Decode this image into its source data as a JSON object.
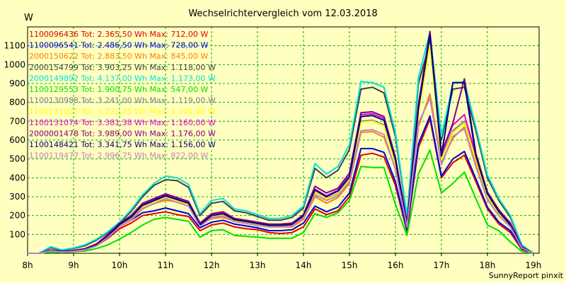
{
  "chart_data": {
    "type": "line",
    "title": "Wechselrichtervergleich vom 12.03.2018",
    "ylabel": "W",
    "xlabel": "",
    "credit": "SunnyReport pinxit",
    "ylim": [
      0,
      1200
    ],
    "yticks": [
      100,
      200,
      300,
      400,
      500,
      600,
      700,
      800,
      900,
      1000,
      1100
    ],
    "xlim": [
      8,
      19.125
    ],
    "xticks": [
      8,
      9,
      10,
      11,
      12,
      13,
      14,
      15,
      16,
      17,
      18,
      19
    ],
    "xtick_labels": [
      "8h",
      "9h",
      "10h",
      "11h",
      "12h",
      "13h",
      "14h",
      "15h",
      "16h",
      "17h",
      "18h",
      "19h"
    ],
    "grid": true,
    "legend_position": "top-left",
    "x": [
      8.0,
      8.25,
      8.5,
      8.75,
      9.0,
      9.25,
      9.5,
      9.75,
      10.0,
      10.25,
      10.5,
      10.75,
      11.0,
      11.25,
      11.5,
      11.75,
      12.0,
      12.25,
      12.5,
      12.75,
      13.0,
      13.25,
      13.5,
      13.75,
      14.0,
      14.25,
      14.5,
      14.75,
      15.0,
      15.25,
      15.5,
      15.75,
      16.0,
      16.25,
      16.5,
      16.75,
      17.0,
      17.25,
      17.5,
      17.75,
      18.0,
      18.25,
      18.5,
      18.75,
      19.0
    ],
    "series": [
      {
        "name": "1100096436 Tot: 2.365,50 Wh Max: 712,00 W",
        "color": "#e00000",
        "values": [
          0,
          0,
          12,
          5,
          10,
          18,
          40,
          80,
          130,
          160,
          200,
          210,
          220,
          205,
          195,
          120,
          150,
          160,
          140,
          130,
          125,
          110,
          105,
          110,
          140,
          235,
          205,
          225,
          300,
          520,
          530,
          510,
          360,
          115,
          560,
          712,
          400,
          480,
          520,
          380,
          235,
          155,
          110,
          20,
          0
        ]
      },
      {
        "name": "1100096541 Tot: 2.486,50 Wh Max: 728,00 W",
        "color": "#0000e0",
        "values": [
          0,
          0,
          15,
          8,
          12,
          20,
          45,
          90,
          145,
          175,
          215,
          225,
          240,
          225,
          210,
          135,
          165,
          175,
          155,
          145,
          135,
          120,
          120,
          125,
          160,
          250,
          220,
          245,
          320,
          555,
          555,
          535,
          380,
          125,
          580,
          728,
          410,
          500,
          540,
          395,
          245,
          165,
          120,
          25,
          0
        ]
      },
      {
        "name": "2000150622 Tot: 2.883,50 Wh Max: 845,00 W",
        "color": "#ff8000",
        "values": [
          0,
          0,
          12,
          6,
          10,
          18,
          40,
          85,
          140,
          175,
          235,
          265,
          280,
          275,
          255,
          150,
          185,
          190,
          170,
          160,
          150,
          140,
          140,
          140,
          180,
          300,
          265,
          295,
          370,
          640,
          645,
          615,
          450,
          140,
          670,
          845,
          480,
          610,
          670,
          470,
          290,
          200,
          140,
          30,
          0
        ]
      },
      {
        "name": "2000154799 Tot: 3.903,25 Wh Max: 1.118,00 W",
        "color": "#404040",
        "values": [
          0,
          0,
          30,
          15,
          25,
          40,
          70,
          110,
          160,
          220,
          300,
          360,
          390,
          385,
          350,
          200,
          265,
          275,
          225,
          215,
          195,
          175,
          175,
          190,
          240,
          450,
          400,
          440,
          550,
          870,
          880,
          850,
          620,
          190,
          900,
          1118,
          600,
          870,
          880,
          650,
          400,
          280,
          190,
          40,
          0
        ]
      },
      {
        "name": "2000149892 Tot: 4.137,00 Wh Max: 1.173,00 W",
        "color": "#00e0e0",
        "values": [
          0,
          0,
          35,
          18,
          28,
          45,
          75,
          115,
          165,
          230,
          310,
          370,
          410,
          400,
          365,
          210,
          280,
          290,
          235,
          225,
          205,
          185,
          185,
          200,
          250,
          475,
          420,
          460,
          575,
          910,
          905,
          880,
          640,
          200,
          930,
          1173,
          620,
          900,
          910,
          670,
          415,
          290,
          200,
          45,
          0
        ]
      },
      {
        "name": "1100129553 Tot: 1.900,75 Wh Max: 547,00 W",
        "color": "#00e000",
        "values": [
          0,
          0,
          8,
          4,
          8,
          12,
          25,
          45,
          75,
          110,
          150,
          180,
          190,
          180,
          170,
          85,
          120,
          125,
          95,
          90,
          85,
          80,
          80,
          80,
          110,
          210,
          190,
          215,
          280,
          460,
          455,
          455,
          260,
          95,
          420,
          547,
          320,
          370,
          430,
          290,
          150,
          120,
          60,
          10,
          0
        ]
      },
      {
        "name": "1100130988 Tot: 3.241,00 Wh Max: 1.119,00 W",
        "color": "#808080",
        "values": [
          0,
          0,
          15,
          8,
          10,
          18,
          40,
          90,
          150,
          190,
          250,
          270,
          300,
          280,
          260,
          150,
          200,
          205,
          175,
          165,
          155,
          145,
          145,
          150,
          195,
          320,
          290,
          315,
          395,
          700,
          705,
          680,
          480,
          150,
          740,
          1119,
          500,
          650,
          700,
          500,
          310,
          215,
          150,
          30,
          0
        ]
      },
      {
        "name": "1100131025 Tot: 3.221,25 Wh Max: 1.105,00 W",
        "color": "#ffff00",
        "values": [
          0,
          0,
          14,
          7,
          10,
          18,
          42,
          88,
          148,
          185,
          245,
          268,
          295,
          278,
          258,
          148,
          198,
          202,
          172,
          162,
          152,
          142,
          142,
          148,
          192,
          318,
          288,
          310,
          390,
          695,
          700,
          675,
          475,
          148,
          735,
          1105,
          495,
          640,
          690,
          495,
          305,
          210,
          148,
          28,
          0
        ]
      },
      {
        "name": "1100131074 Tot: 3.381,38 Wh Max: 1.160,00 W",
        "color": "#e000e0",
        "values": [
          0,
          0,
          16,
          8,
          12,
          20,
          45,
          95,
          155,
          195,
          260,
          285,
          310,
          290,
          270,
          155,
          205,
          215,
          180,
          170,
          160,
          150,
          150,
          155,
          200,
          340,
          305,
          335,
          410,
          735,
          740,
          715,
          500,
          155,
          775,
          1160,
          520,
          680,
          735,
          520,
          320,
          225,
          155,
          32,
          0
        ]
      },
      {
        "name": "2000001478 Tot: 3.989,00 Wh Max: 1.176,00 W",
        "color": "#800080",
        "values": [
          0,
          0,
          18,
          10,
          15,
          25,
          50,
          100,
          160,
          200,
          265,
          290,
          315,
          295,
          275,
          160,
          210,
          220,
          185,
          175,
          165,
          155,
          155,
          160,
          205,
          355,
          320,
          345,
          425,
          745,
          750,
          725,
          510,
          160,
          790,
          1176,
          530,
          690,
          925,
          530,
          325,
          230,
          160,
          35,
          0
        ]
      },
      {
        "name": "1100148421 Tot: 3.341,75 Wh Max: 1.156,00 W",
        "color": "#000080",
        "values": [
          0,
          0,
          16,
          9,
          12,
          20,
          45,
          92,
          152,
          190,
          255,
          280,
          305,
          285,
          265,
          150,
          200,
          210,
          178,
          168,
          158,
          148,
          148,
          152,
          198,
          335,
          300,
          330,
          405,
          725,
          730,
          705,
          495,
          150,
          765,
          1156,
          515,
          905,
          905,
          515,
          315,
          220,
          150,
          30,
          0
        ]
      },
      {
        "name": "1100119477 Tot: 2.996,75 Wh Max: 822,00 W",
        "color": "#c080c0",
        "values": [
          0,
          0,
          14,
          7,
          10,
          18,
          40,
          85,
          140,
          178,
          238,
          262,
          290,
          270,
          250,
          142,
          190,
          198,
          168,
          158,
          148,
          140,
          140,
          145,
          188,
          310,
          280,
          305,
          380,
          650,
          655,
          630,
          445,
          140,
          690,
          822,
          470,
          620,
          660,
          460,
          285,
          200,
          140,
          28,
          0
        ]
      }
    ]
  }
}
